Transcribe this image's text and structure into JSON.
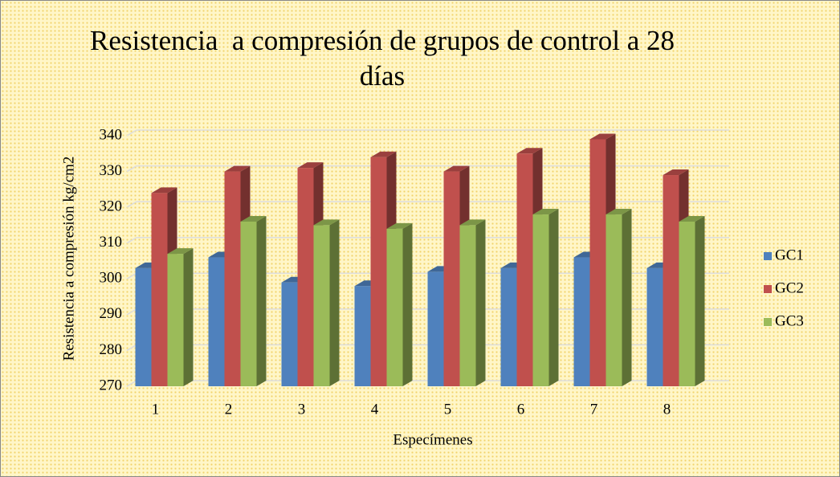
{
  "chart_data": {
    "type": "bar",
    "title": "Resistencia  a compresión de grupos de control a 28 días",
    "x_label": "Especímenes",
    "y_label": "Resistencia a compresión kg/cm2",
    "categories": [
      "1",
      "2",
      "3",
      "4",
      "5",
      "6",
      "7",
      "8"
    ],
    "series": [
      {
        "name": "GC1",
        "color": "#4f81bd",
        "values": [
          303,
          306,
          299,
          298,
          302,
          303,
          306,
          303
        ]
      },
      {
        "name": "GC2",
        "color": "#c0504d",
        "values": [
          324,
          330,
          331,
          334,
          330,
          335,
          339,
          329
        ]
      },
      {
        "name": "GC3",
        "color": "#9bbb59",
        "values": [
          307,
          316,
          315,
          314,
          315,
          318,
          318,
          316
        ]
      }
    ],
    "ylim": [
      270,
      340
    ],
    "yticks": [
      270,
      280,
      290,
      300,
      310,
      320,
      330,
      340
    ],
    "grid": true,
    "legend": "right"
  }
}
